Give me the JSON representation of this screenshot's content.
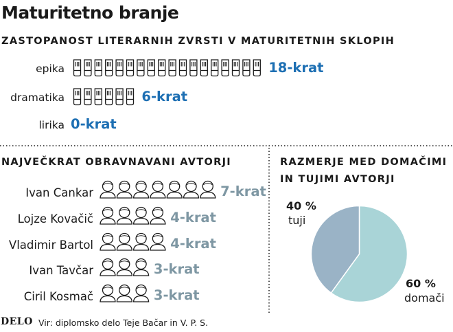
{
  "title": "Maturitetno branje",
  "source": "Vir: diplomsko delo Teje Bačar in V. P. S.",
  "logo": "DELO",
  "colors": {
    "accent_blue": "#1d6fb3",
    "accent_grey": "#7e97a3",
    "pie_domestic": "#a9d4d7",
    "pie_foreign": "#9ab3c6",
    "icon_stroke": "#1a1a1a"
  },
  "chart_data": [
    {
      "type": "bar",
      "title": "ZASTOPANOST LITERARNIH ZVRSTI V MATURITETNIH SKLOPIH",
      "icon": "book-icon",
      "categories": [
        "epika",
        "dramatika",
        "lirika"
      ],
      "values": [
        18,
        6,
        0
      ],
      "value_labels": [
        "18-krat",
        "6-krat",
        "0-krat"
      ]
    },
    {
      "type": "bar",
      "title": "NAJVEČKRAT OBRAVNAVANI AVTORJI",
      "icon": "person-icon",
      "categories": [
        "Ivan Cankar",
        "Lojze Kovačič",
        "Vladimir Bartol",
        "Ivan Tavčar",
        "Ciril Kosmač"
      ],
      "values": [
        7,
        4,
        4,
        3,
        3
      ],
      "value_labels": [
        "7-krat",
        "4-krat",
        "4-krat",
        "3-krat",
        "3-krat"
      ]
    },
    {
      "type": "pie",
      "title_lines": [
        "RAZMERJE MED DOMAČIMI",
        "IN TUJIMI AVTORJI"
      ],
      "slices": [
        {
          "name": "domači",
          "value": 60,
          "label": "60 %"
        },
        {
          "name": "tuji",
          "value": 40,
          "label": "40 %"
        }
      ]
    }
  ]
}
